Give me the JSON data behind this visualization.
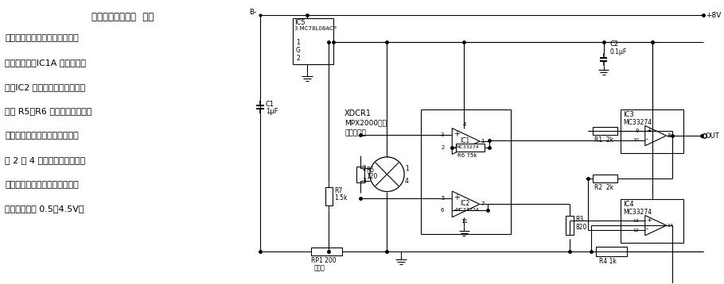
{
  "bg_color": "#ffffff",
  "fig_width": 9.1,
  "fig_height": 3.58,
  "dpi": 100,
  "text_left": [
    [
      "压力测量接口电路  电路",
      true,
      8.5
    ],
    [
      "由一片四运放和压力传感器及几",
      false,
      8.0
    ],
    [
      "个电阻构成，IC1A 是差模放大",
      false,
      8.0
    ],
    [
      "器，IC2 用来隔离传感器负端，",
      false,
      8.0
    ],
    [
      "防止 R5、R6 上的反馈电流流入",
      false,
      8.0
    ],
    [
      "传感器负载。零压力时，传感器",
      false,
      8.0
    ],
    [
      "的 2 和 4 端之间的差模电压为",
      false,
      8.0
    ],
    [
      "零。零压力和满量程压力的模拟",
      false,
      8.0
    ],
    [
      "电压对应值为 0.5～4.5V。",
      false,
      8.0
    ]
  ]
}
